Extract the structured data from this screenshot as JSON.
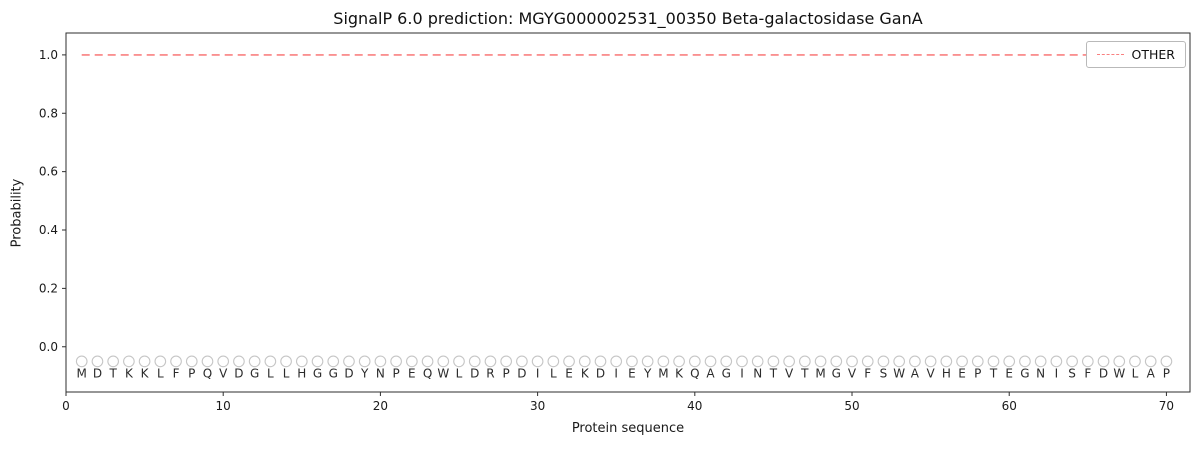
{
  "chart_data": {
    "type": "line",
    "title": "SignalP 6.0 prediction: MGYG000002531_00350 Beta-galactosidase GanA",
    "xlabel": "Protein sequence",
    "ylabel": "Probability",
    "xlim": [
      0,
      71.5
    ],
    "ylim": [
      -0.155,
      1.075
    ],
    "xticks": [
      0,
      10,
      20,
      30,
      40,
      50,
      60,
      70
    ],
    "yticks": [
      0,
      0.2,
      0.4,
      0.6,
      0.8,
      1
    ],
    "grid": false,
    "legend": {
      "position": "upper-right",
      "entries": [
        {
          "label": "OTHER",
          "color": "#f98080",
          "linestyle": "dashed"
        }
      ]
    },
    "series": [
      {
        "name": "OTHER",
        "color": "#f98080",
        "linestyle": "dashed",
        "x_start": 1,
        "x_step": 1,
        "values": [
          1,
          1,
          1,
          1,
          1,
          1,
          1,
          1,
          1,
          1,
          1,
          1,
          1,
          1,
          1,
          1,
          1,
          1,
          1,
          1,
          1,
          1,
          1,
          1,
          1,
          1,
          1,
          1,
          1,
          1,
          1,
          1,
          1,
          1,
          1,
          1,
          1,
          1,
          1,
          1,
          1,
          1,
          1,
          1,
          1,
          1,
          1,
          1,
          1,
          1,
          1,
          1,
          1,
          1,
          1,
          1,
          1,
          1,
          1,
          1,
          1,
          1,
          1,
          1,
          1,
          1,
          1,
          1,
          1,
          1
        ]
      }
    ],
    "sequence_markers": {
      "symbol": "circle-open",
      "color": "#c6c6c6",
      "y": -0.05,
      "letters": "MDTKKLFPQVDGLLHGGDYNPEQWLDRPDILEKDIEYMKQAGINTVTMGVFSWAVHEPTEGNISFDWLAP",
      "letter_color": "#2b2b2b"
    }
  }
}
